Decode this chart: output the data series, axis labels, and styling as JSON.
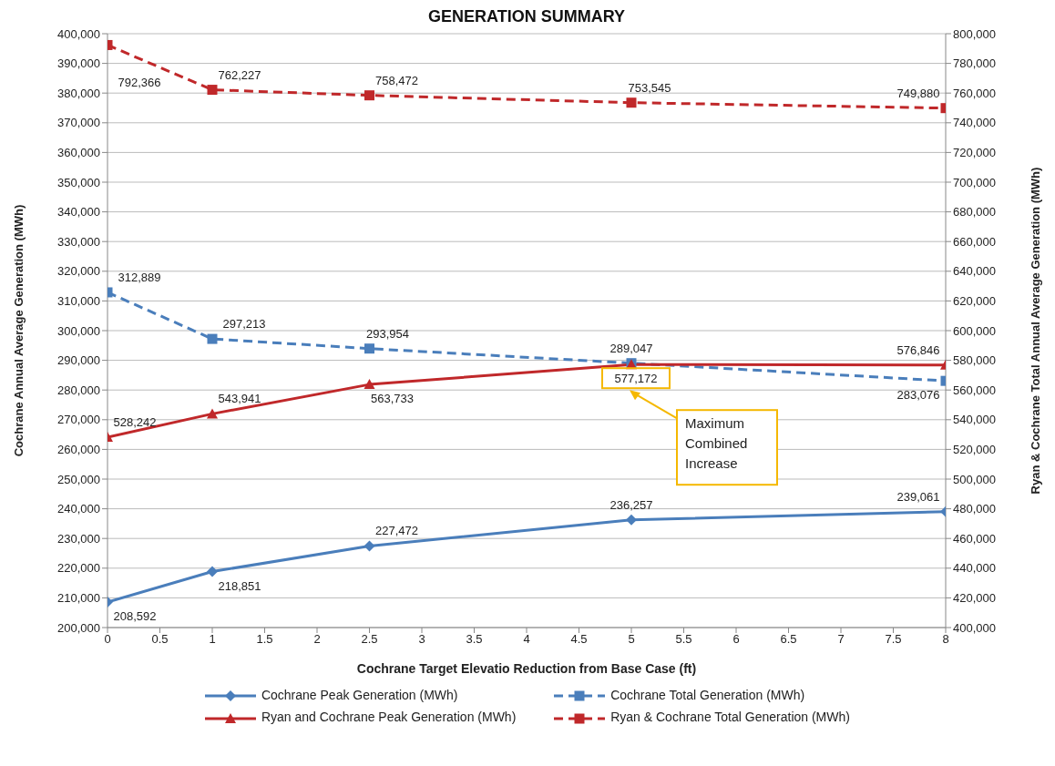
{
  "chart_data": {
    "type": "line",
    "title": "GENERATION SUMMARY",
    "xlabel": "Cochrane Target Elevatio Reduction from Base Case (ft)",
    "ylabel": "Cochrane Annual Average Generation (MWh)",
    "y2label": "Ryan & Cochrane Total Annual Average Generation (MWh)",
    "x": [
      0,
      1,
      2.5,
      5,
      8
    ],
    "series": [
      {
        "name": "Cochrane Peak Generation (MWh)",
        "color": "#4a7ebb",
        "values": [
          208592,
          218851,
          227472,
          236257,
          239061
        ],
        "value_labels": [
          "208,592",
          "218,851",
          "227,472",
          "236,257",
          "239,061"
        ],
        "marker": "diamond",
        "line_style": "solid"
      },
      {
        "name": "Cochrane Total Generation (MWh)",
        "color": "#4a7ebb",
        "values": [
          312889,
          297213,
          293954,
          289047,
          283076
        ],
        "value_labels": [
          "312,889",
          "297,213",
          "293,954",
          "289,047",
          "283,076"
        ],
        "marker": "square",
        "line_style": "dashed"
      },
      {
        "name": "Ryan and Cochrane Peak Generation (MWh)",
        "color": "#c0282a",
        "values": [
          528242,
          543941,
          563733,
          577172,
          576846
        ],
        "value_labels": [
          "528,242",
          "543,941",
          "563,733",
          "577,172",
          "576,846"
        ],
        "marker": "triangle",
        "line_style": "solid",
        "axis": "y2"
      },
      {
        "name": "Ryan & Cochrane Total Generation (MWh)",
        "color": "#c0282a",
        "values": [
          792366,
          762227,
          758472,
          753545,
          749880
        ],
        "value_labels": [
          "792,366",
          "762,227",
          "758,472",
          "753,545",
          "749,880"
        ],
        "marker": "square",
        "line_style": "dashed",
        "axis": "y2"
      }
    ],
    "xlim": [
      0,
      8
    ],
    "xticks": [
      0,
      0.5,
      1,
      1.5,
      2,
      2.5,
      3,
      3.5,
      4,
      4.5,
      5,
      5.5,
      6,
      6.5,
      7,
      7.5,
      8
    ],
    "ylim": [
      200000,
      400000
    ],
    "yticks": [
      {
        "value": 200000,
        "label": "200,000"
      },
      {
        "value": 210000,
        "label": "210,000"
      },
      {
        "value": 220000,
        "label": "220,000"
      },
      {
        "value": 230000,
        "label": "230,000"
      },
      {
        "value": 240000,
        "label": "240,000"
      },
      {
        "value": 250000,
        "label": "250,000"
      },
      {
        "value": 260000,
        "label": "260,000"
      },
      {
        "value": 270000,
        "label": "270,000"
      },
      {
        "value": 280000,
        "label": "280,000"
      },
      {
        "value": 290000,
        "label": "290,000"
      },
      {
        "value": 300000,
        "label": "300,000"
      },
      {
        "value": 310000,
        "label": "310,000"
      },
      {
        "value": 320000,
        "label": "320,000"
      },
      {
        "value": 330000,
        "label": "330,000"
      },
      {
        "value": 340000,
        "label": "340,000"
      },
      {
        "value": 350000,
        "label": "350,000"
      },
      {
        "value": 360000,
        "label": "360,000"
      },
      {
        "value": 370000,
        "label": "370,000"
      },
      {
        "value": 380000,
        "label": "380,000"
      },
      {
        "value": 390000,
        "label": "390,000"
      },
      {
        "value": 400000,
        "label": "400,000"
      }
    ],
    "y2lim": [
      400000,
      800000
    ],
    "y2ticks": [
      {
        "value": 400000,
        "label": "400,000"
      },
      {
        "value": 420000,
        "label": "420,000"
      },
      {
        "value": 440000,
        "label": "440,000"
      },
      {
        "value": 460000,
        "label": "460,000"
      },
      {
        "value": 480000,
        "label": "480,000"
      },
      {
        "value": 500000,
        "label": "500,000"
      },
      {
        "value": 520000,
        "label": "520,000"
      },
      {
        "value": 540000,
        "label": "540,000"
      },
      {
        "value": 560000,
        "label": "560,000"
      },
      {
        "value": 580000,
        "label": "580,000"
      },
      {
        "value": 600000,
        "label": "600,000"
      },
      {
        "value": 620000,
        "label": "620,000"
      },
      {
        "value": 640000,
        "label": "640,000"
      },
      {
        "value": 660000,
        "label": "660,000"
      },
      {
        "value": 680000,
        "label": "680,000"
      },
      {
        "value": 700000,
        "label": "700,000"
      },
      {
        "value": 720000,
        "label": "720,000"
      },
      {
        "value": 740000,
        "label": "740,000"
      },
      {
        "value": 760000,
        "label": "760,000"
      },
      {
        "value": 780000,
        "label": "780,000"
      },
      {
        "value": 800000,
        "label": "800,000"
      }
    ],
    "grid": "y",
    "legend": "bottom",
    "annotations": [
      "Maximum Combined Increase"
    ]
  }
}
